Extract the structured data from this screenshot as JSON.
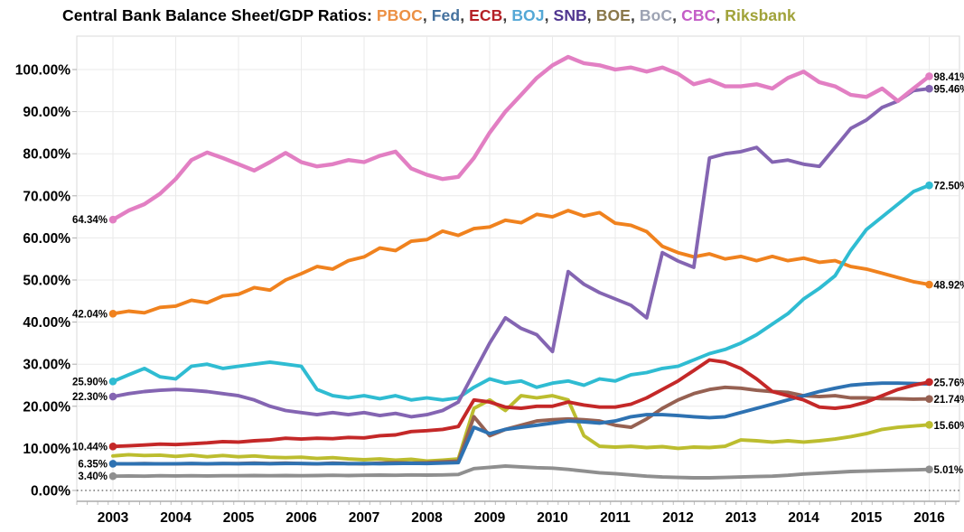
{
  "title": {
    "text": "Central Bank Balance Sheet/GDP Ratios:",
    "separator": ", "
  },
  "chart_data": {
    "type": "line",
    "title": "Central Bank Balance Sheet/GDP Ratios",
    "x_start": 2003,
    "x_step": 0.25,
    "xlim": [
      2003,
      2016
    ],
    "ylim": [
      0,
      105
    ],
    "grid": true,
    "y_tick_values": [
      0,
      10,
      20,
      30,
      40,
      50,
      60,
      70,
      80,
      90,
      100
    ],
    "y_tick_labels": [
      "0.00%",
      "10.00%",
      "20.00%",
      "30.00%",
      "40.00%",
      "50.00%",
      "60.00%",
      "70.00%",
      "80.00%",
      "90.00%",
      "100.00%"
    ],
    "x_tick_labels": [
      "2003",
      "2004",
      "2005",
      "2006",
      "2007",
      "2008",
      "2009",
      "2010",
      "2011",
      "2012",
      "2013",
      "2014",
      "2015",
      "2016"
    ],
    "draw_order": [
      "BoC",
      "Riksbank",
      "BOE",
      "Fed",
      "ECB",
      "PBOC",
      "BOJ",
      "SNB",
      "CBC"
    ],
    "series": [
      {
        "name": "PBOC",
        "legend_color": "#EC9044",
        "line_color": "#F0821E",
        "start_label": "42.04%",
        "end_label": "48.92%",
        "values": [
          42.0,
          42.6,
          42.2,
          43.5,
          43.8,
          45.2,
          44.6,
          46.2,
          46.6,
          48.2,
          47.6,
          50.0,
          51.5,
          53.2,
          52.6,
          54.6,
          55.5,
          57.6,
          57.0,
          59.2,
          59.6,
          61.6,
          60.6,
          62.2,
          62.6,
          64.2,
          63.6,
          65.6,
          65.0,
          66.5,
          65.2,
          66.0,
          63.5,
          63.0,
          61.5,
          58.0,
          56.5,
          55.5,
          56.2,
          55.0,
          55.6,
          54.6,
          55.6,
          54.6,
          55.2,
          54.2,
          54.6,
          53.2,
          52.6,
          51.6,
          50.6,
          49.6,
          48.92
        ]
      },
      {
        "name": "Fed",
        "legend_color": "#44719E",
        "line_color": "#2E72B2",
        "start_label": "6.35%",
        "end_label": null,
        "values": [
          6.35,
          6.3,
          6.35,
          6.3,
          6.35,
          6.4,
          6.35,
          6.4,
          6.35,
          6.4,
          6.35,
          6.4,
          6.4,
          6.35,
          6.4,
          6.35,
          6.4,
          6.35,
          6.4,
          6.45,
          6.4,
          6.5,
          6.6,
          15.0,
          13.5,
          14.5,
          15.0,
          15.5,
          16.0,
          16.5,
          16.3,
          16.0,
          16.5,
          17.5,
          18.0,
          18.0,
          17.8,
          17.5,
          17.3,
          17.5,
          18.5,
          19.5,
          20.5,
          21.5,
          22.5,
          23.5,
          24.3,
          25.0,
          25.3,
          25.5,
          25.5,
          25.4,
          25.3
        ]
      },
      {
        "name": "ECB",
        "legend_color": "#B52025",
        "line_color": "#C42828",
        "start_label": "10.44%",
        "end_label": "25.76%",
        "values": [
          10.44,
          10.6,
          10.8,
          11.0,
          10.9,
          11.1,
          11.3,
          11.6,
          11.5,
          11.8,
          12.0,
          12.4,
          12.2,
          12.4,
          12.3,
          12.6,
          12.5,
          13.0,
          13.2,
          14.0,
          14.2,
          14.5,
          15.2,
          21.5,
          21.0,
          19.8,
          19.5,
          20.0,
          20.0,
          21.0,
          20.3,
          19.8,
          19.8,
          20.5,
          22.0,
          24.0,
          26.0,
          28.5,
          31.0,
          30.5,
          29.0,
          26.5,
          23.5,
          22.5,
          21.5,
          19.8,
          19.5,
          20.0,
          21.0,
          22.5,
          24.0,
          25.0,
          25.76
        ]
      },
      {
        "name": "BOJ",
        "legend_color": "#54A8D6",
        "line_color": "#2FBCD2",
        "start_label": "25.90%",
        "end_label": "72.50%",
        "values": [
          25.9,
          27.5,
          29.0,
          27.0,
          26.5,
          29.5,
          30.0,
          29.0,
          29.5,
          30.0,
          30.5,
          30.0,
          29.5,
          24.0,
          22.5,
          22.0,
          22.5,
          21.8,
          22.5,
          21.5,
          22.0,
          21.5,
          22.0,
          24.5,
          26.5,
          25.5,
          26.0,
          24.5,
          25.5,
          26.0,
          25.0,
          26.5,
          26.0,
          27.5,
          28.0,
          29.0,
          29.5,
          31.0,
          32.5,
          33.5,
          35.0,
          37.0,
          39.5,
          42.0,
          45.5,
          48.0,
          51.0,
          57.0,
          62.0,
          65.0,
          68.0,
          71.0,
          72.5
        ]
      },
      {
        "name": "SNB",
        "legend_color": "#503690",
        "line_color": "#8465B2",
        "start_label": "22.30%",
        "end_label": "95.46%",
        "values": [
          22.3,
          23.0,
          23.5,
          23.8,
          24.0,
          23.8,
          23.5,
          23.0,
          22.5,
          21.5,
          20.0,
          19.0,
          18.5,
          18.0,
          18.5,
          18.0,
          18.5,
          17.8,
          18.3,
          17.5,
          18.0,
          19.0,
          21.0,
          28.0,
          35.0,
          41.0,
          38.5,
          37.0,
          33.0,
          52.0,
          49.0,
          47.0,
          45.5,
          44.0,
          41.0,
          56.5,
          54.5,
          53.0,
          79.0,
          80.0,
          80.5,
          81.5,
          78.0,
          78.5,
          77.5,
          77.0,
          81.5,
          86.0,
          88.0,
          91.0,
          92.5,
          95.0,
          95.46
        ]
      },
      {
        "name": "BOE",
        "legend_color": "#8A784A",
        "line_color": "#966152",
        "start_label": null,
        "end_label": "21.74%",
        "values": [
          6.3,
          6.3,
          6.4,
          6.3,
          6.3,
          6.4,
          6.3,
          6.4,
          6.4,
          6.5,
          6.4,
          6.5,
          6.4,
          6.3,
          6.5,
          6.4,
          6.3,
          6.5,
          6.6,
          6.5,
          6.6,
          6.8,
          7.0,
          17.5,
          13.0,
          14.5,
          15.5,
          16.5,
          16.8,
          17.0,
          16.8,
          16.5,
          15.5,
          15.0,
          17.0,
          19.5,
          21.5,
          23.0,
          24.0,
          24.5,
          24.3,
          23.8,
          23.5,
          23.3,
          22.5,
          22.3,
          22.5,
          22.0,
          22.0,
          21.8,
          21.8,
          21.7,
          21.74
        ]
      },
      {
        "name": "BoC",
        "legend_color": "#9DA3B3",
        "line_color": "#8F8F8F",
        "start_label": "3.40%",
        "end_label": "5.01%",
        "values": [
          3.4,
          3.45,
          3.4,
          3.5,
          3.45,
          3.5,
          3.45,
          3.5,
          3.5,
          3.55,
          3.5,
          3.55,
          3.5,
          3.55,
          3.6,
          3.55,
          3.6,
          3.65,
          3.6,
          3.7,
          3.65,
          3.7,
          3.8,
          5.2,
          5.5,
          5.8,
          5.6,
          5.4,
          5.3,
          5.0,
          4.6,
          4.2,
          4.0,
          3.7,
          3.4,
          3.2,
          3.1,
          3.0,
          3.0,
          3.1,
          3.2,
          3.3,
          3.4,
          3.6,
          3.9,
          4.1,
          4.3,
          4.5,
          4.6,
          4.7,
          4.8,
          4.9,
          5.01
        ]
      },
      {
        "name": "CBC",
        "legend_color": "#C45EC7",
        "line_color": "#E27FC3",
        "start_label": "64.34%",
        "end_label": "98.41%",
        "values": [
          64.34,
          66.5,
          68.0,
          70.5,
          74.0,
          78.5,
          80.3,
          79.0,
          77.5,
          76.0,
          78.0,
          80.2,
          78.0,
          77.0,
          77.5,
          78.5,
          78.0,
          79.5,
          80.5,
          76.5,
          75.0,
          74.0,
          74.5,
          79.0,
          85.0,
          90.0,
          94.0,
          98.0,
          101.0,
          103.0,
          101.5,
          101.0,
          100.0,
          100.5,
          99.5,
          100.5,
          99.0,
          96.5,
          97.5,
          96.0,
          96.0,
          96.5,
          95.5,
          98.0,
          99.5,
          97.0,
          96.0,
          94.0,
          93.5,
          95.5,
          92.5,
          95.5,
          98.41
        ]
      },
      {
        "name": "Riksbank",
        "legend_color": "#A0A239",
        "line_color": "#BCBD2F",
        "start_label": null,
        "end_label": "15.60%",
        "values": [
          8.2,
          8.5,
          8.3,
          8.4,
          8.1,
          8.4,
          8.0,
          8.3,
          8.0,
          8.2,
          7.9,
          7.8,
          7.9,
          7.6,
          7.8,
          7.5,
          7.3,
          7.5,
          7.2,
          7.4,
          7.0,
          7.2,
          7.5,
          19.5,
          21.5,
          19.0,
          22.5,
          22.0,
          22.5,
          21.5,
          13.0,
          10.5,
          10.3,
          10.5,
          10.2,
          10.4,
          10.0,
          10.3,
          10.2,
          10.5,
          12.0,
          11.8,
          11.5,
          11.8,
          11.5,
          11.8,
          12.2,
          12.8,
          13.5,
          14.5,
          15.0,
          15.3,
          15.6
        ]
      }
    ]
  }
}
